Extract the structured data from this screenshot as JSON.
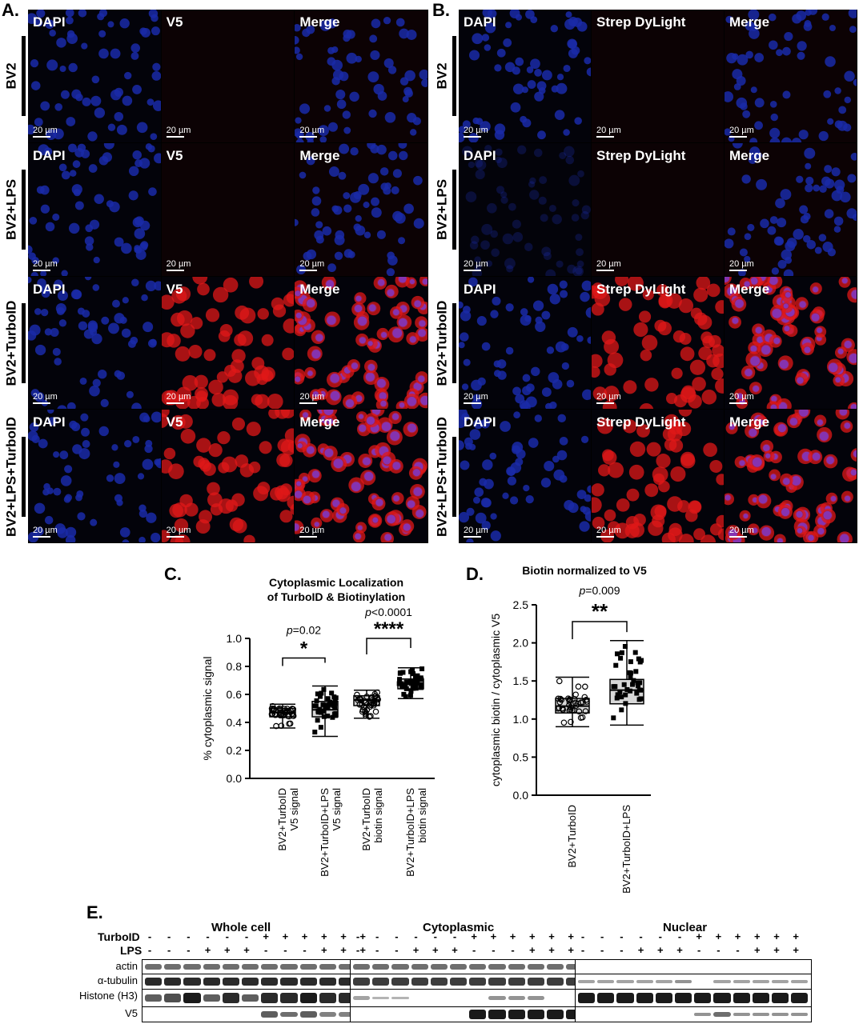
{
  "panels": {
    "a": {
      "letter": "A.",
      "columns": [
        "DAPI",
        "V5",
        "Merge"
      ],
      "rows": [
        "BV2",
        "BV2+LPS",
        "BV2+TurboID",
        "BV2+LPS+TurboID"
      ],
      "scale_text": "20 µm"
    },
    "b": {
      "letter": "B.",
      "columns": [
        "DAPI",
        "Strep DyLight",
        "Merge"
      ],
      "rows": [
        "BV2",
        "BV2+LPS",
        "BV2+TurboID",
        "BV2+LPS+TurboID"
      ],
      "scale_text": "20 µm"
    }
  },
  "colors": {
    "dapi": "#1a2aa8",
    "red": "#e01818",
    "black": "#000000"
  },
  "chart_data": [
    {
      "panel": "C.",
      "type": "box",
      "title": [
        "Cytoplasmic Localization",
        "of TurboID & Biotinylation"
      ],
      "ylabel": "% cytoplasmic signal",
      "ylim": [
        0.0,
        1.0
      ],
      "yticks": [
        "0.0",
        "0.2",
        "0.4",
        "0.6",
        "0.8",
        "1.0"
      ],
      "categories": [
        [
          "BV2+TurboID",
          "V5 signal"
        ],
        [
          "BV2+TurboID+LPS",
          "V5 signal"
        ],
        [
          "BV2+TurboID",
          "biotin signal"
        ],
        [
          "BV2+TurboID+LPS",
          "biotin signal"
        ]
      ],
      "boxes": [
        {
          "min": 0.36,
          "q1": 0.44,
          "median": 0.47,
          "q3": 0.5,
          "max": 0.53
        },
        {
          "min": 0.3,
          "q1": 0.44,
          "median": 0.49,
          "q3": 0.55,
          "max": 0.66
        },
        {
          "min": 0.43,
          "q1": 0.52,
          "median": 0.56,
          "q3": 0.59,
          "max": 0.63
        },
        {
          "min": 0.57,
          "q1": 0.64,
          "median": 0.68,
          "q3": 0.71,
          "max": 0.79
        }
      ],
      "comparisons": [
        {
          "p": "=0.02",
          "stars": "*"
        },
        {
          "p": "<0.0001",
          "stars": "****"
        }
      ]
    },
    {
      "panel": "D.",
      "type": "box",
      "title": [
        "Biotin normalized to V5"
      ],
      "ylabel": "cytoplasmic biotin / cytoplasmic V5",
      "ylim": [
        0.0,
        2.5
      ],
      "yticks": [
        "0.0",
        "0.5",
        "1.0",
        "1.5",
        "2.0",
        "2.5"
      ],
      "categories": [
        [
          "BV2+TurboID"
        ],
        [
          "BV2+TurboID+LPS"
        ]
      ],
      "boxes": [
        {
          "min": 0.9,
          "q1": 1.08,
          "median": 1.17,
          "q3": 1.27,
          "max": 1.55
        },
        {
          "min": 0.92,
          "q1": 1.2,
          "median": 1.38,
          "q3": 1.52,
          "max": 2.03
        }
      ],
      "comparisons": [
        {
          "p": "=0.009",
          "stars": "**"
        }
      ]
    }
  ],
  "western": {
    "letter": "E.",
    "groups": [
      "Whole cell",
      "Cytoplasmic",
      "Nuclear"
    ],
    "treatments": [
      {
        "name": "TurboID",
        "signs": [
          "-",
          "-",
          "-",
          "-",
          "-",
          "-",
          "+",
          "+",
          "+",
          "+",
          "+",
          "+"
        ]
      },
      {
        "name": "LPS",
        "signs": [
          "-",
          "-",
          "-",
          "+",
          "+",
          "+",
          "-",
          "-",
          "-",
          "+",
          "+",
          "+"
        ]
      }
    ],
    "proteins": [
      "actin",
      "α-tubulin",
      "Histone (H3)",
      "V5"
    ]
  }
}
